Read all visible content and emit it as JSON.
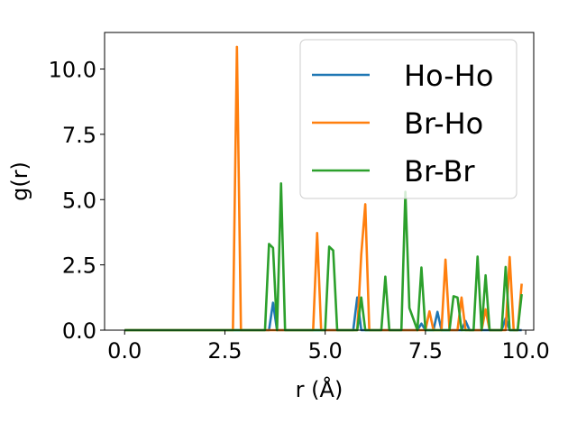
{
  "chart_data": {
    "type": "line",
    "title": "",
    "xlabel": "r (Å)",
    "ylabel": "g(r)",
    "xlim": [
      -0.5,
      10.2
    ],
    "ylim": [
      0,
      11.4
    ],
    "xticks": [
      0.0,
      2.5,
      5.0,
      7.5,
      10.0
    ],
    "xtick_labels": [
      "0.0",
      "2.5",
      "5.0",
      "7.5",
      "10.0"
    ],
    "yticks": [
      0.0,
      2.5,
      5.0,
      7.5,
      10.0
    ],
    "ytick_labels": [
      "0.0",
      "2.5",
      "5.0",
      "7.5",
      "10.0"
    ],
    "legend_position": "top-right",
    "grid": false,
    "series": [
      {
        "name": "Ho-Ho",
        "color": "#1f77b4",
        "x": [
          0.0,
          3.6,
          3.7,
          3.8,
          5.7,
          5.8,
          5.9,
          7.3,
          7.4,
          7.5,
          7.7,
          7.8,
          7.9,
          8.4,
          8.5,
          8.6,
          9.4,
          9.5,
          9.6,
          9.9
        ],
        "y": [
          0.0,
          0.0,
          1.05,
          0.0,
          0.0,
          1.25,
          0.0,
          0.0,
          0.25,
          0.0,
          0.0,
          0.7,
          0.0,
          0.0,
          0.35,
          0.0,
          0.0,
          0.45,
          0.0,
          0.0
        ]
      },
      {
        "name": "Br-Ho",
        "color": "#ff7f0e",
        "x": [
          0.0,
          2.7,
          2.8,
          2.9,
          4.7,
          4.8,
          4.9,
          5.8,
          5.9,
          6.0,
          6.1,
          7.5,
          7.6,
          7.7,
          7.9,
          8.0,
          8.1,
          8.3,
          8.4,
          8.5,
          8.9,
          9.0,
          9.1,
          9.5,
          9.6,
          9.7,
          9.8,
          9.9
        ],
        "y": [
          0.0,
          0.0,
          10.85,
          0.0,
          0.0,
          3.72,
          0.0,
          0.0,
          2.9,
          4.82,
          0.0,
          0.0,
          0.72,
          0.0,
          0.0,
          2.7,
          0.0,
          0.0,
          1.25,
          0.0,
          0.0,
          0.8,
          0.0,
          0.0,
          2.8,
          0.0,
          0.0,
          1.78
        ]
      },
      {
        "name": "Br-Br",
        "color": "#2ca02c",
        "x": [
          0.0,
          3.5,
          3.6,
          3.7,
          3.8,
          3.9,
          4.0,
          5.0,
          5.1,
          5.2,
          5.3,
          5.8,
          5.9,
          6.0,
          6.4,
          6.5,
          6.6,
          6.9,
          7.0,
          7.1,
          7.3,
          7.4,
          7.5,
          8.1,
          8.2,
          8.3,
          8.4,
          8.7,
          8.8,
          8.9,
          9.0,
          9.1,
          9.2,
          9.4,
          9.5,
          9.6,
          9.8,
          9.9
        ],
        "y": [
          0.0,
          0.0,
          3.3,
          3.15,
          0.0,
          5.62,
          0.0,
          0.0,
          3.2,
          3.05,
          0.0,
          0.0,
          1.25,
          0.0,
          0.0,
          2.05,
          0.0,
          0.0,
          5.3,
          0.85,
          0.0,
          2.4,
          0.0,
          0.0,
          1.3,
          1.25,
          0.0,
          0.0,
          2.82,
          0.0,
          2.1,
          0.0,
          0.0,
          0.0,
          2.42,
          0.0,
          0.0,
          1.38
        ]
      }
    ]
  }
}
